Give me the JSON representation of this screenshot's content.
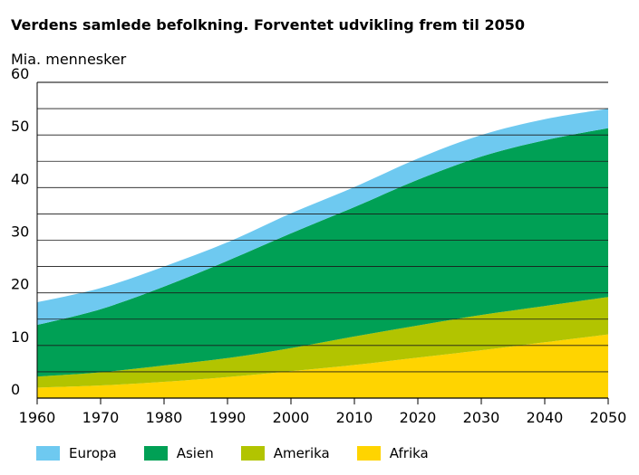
{
  "chart_data": {
    "type": "area",
    "title": "Verdens samlede befolkning. Forventet udvikling frem til 2050",
    "ylabel": "Mia. mennesker",
    "xlabel": "",
    "x": [
      1960,
      1970,
      1980,
      1990,
      2000,
      2010,
      2020,
      2030,
      2040,
      2050
    ],
    "ylim": [
      0,
      60
    ],
    "xlim": [
      1960,
      2050
    ],
    "y_ticks": [
      0,
      10,
      20,
      30,
      40,
      50,
      60
    ],
    "x_ticks": [
      1960,
      1970,
      1980,
      1990,
      2000,
      2010,
      2020,
      2030,
      2040,
      2050
    ],
    "stacked": true,
    "grid": true,
    "legend_position": "bottom",
    "series": [
      {
        "name": "Afrika",
        "color": "#ffd400",
        "values": [
          2.0,
          2.4,
          3.1,
          4.0,
          5.1,
          6.3,
          7.7,
          9.1,
          10.6,
          12.1
        ]
      },
      {
        "name": "Amerika",
        "color": "#b2c400",
        "values": [
          2.1,
          2.5,
          3.1,
          3.6,
          4.4,
          5.4,
          6.1,
          6.7,
          6.9,
          7.1
        ]
      },
      {
        "name": "Asien",
        "color": "#00a055",
        "values": [
          9.8,
          12.0,
          15.0,
          18.5,
          21.8,
          24.6,
          27.7,
          30.1,
          31.5,
          32.1
        ]
      },
      {
        "name": "Europa",
        "color": "#6ec9f0",
        "values": [
          4.3,
          4.0,
          3.8,
          3.5,
          3.8,
          3.8,
          4.0,
          4.1,
          4.0,
          3.7
        ]
      }
    ]
  }
}
